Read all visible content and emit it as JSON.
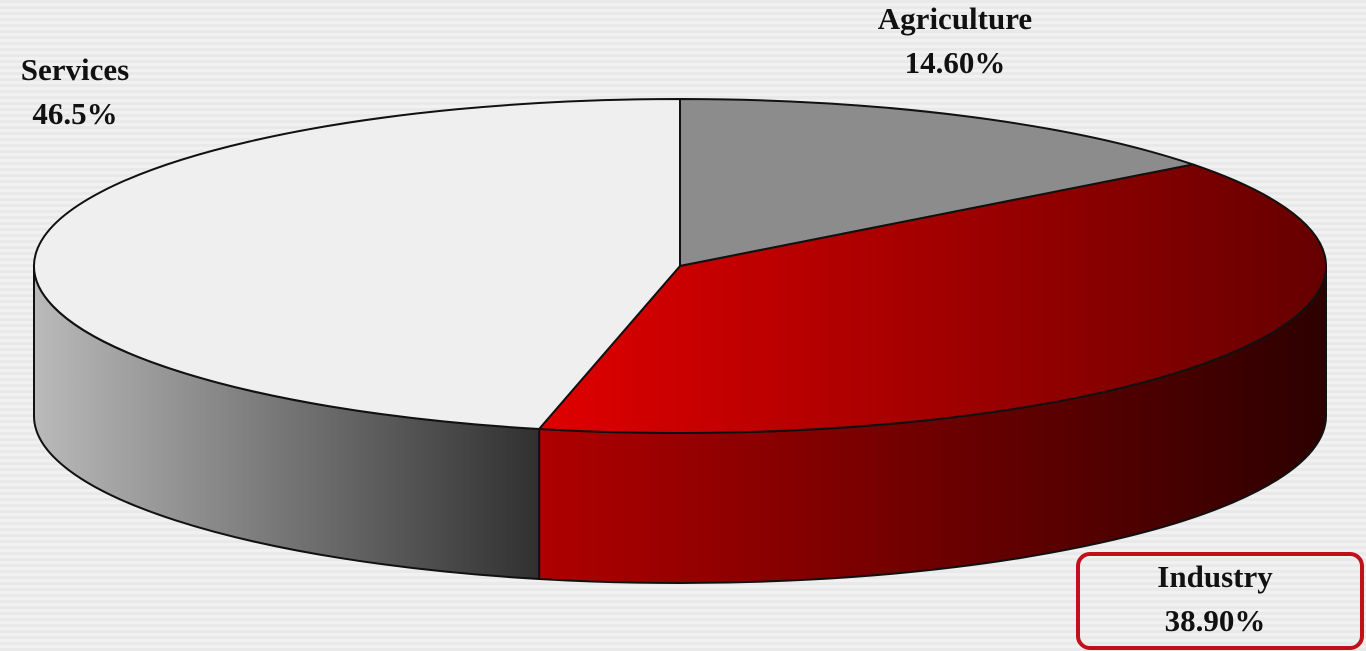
{
  "chart_data": {
    "type": "pie",
    "categories": [
      "Agriculture",
      "Industry",
      "Services"
    ],
    "values": [
      14.6,
      38.9,
      46.5
    ],
    "value_labels": [
      "14.60%",
      "38.90%",
      "46.5%"
    ],
    "colors": [
      "#8c8c8c",
      "#e00000",
      "#efefef"
    ]
  }
}
